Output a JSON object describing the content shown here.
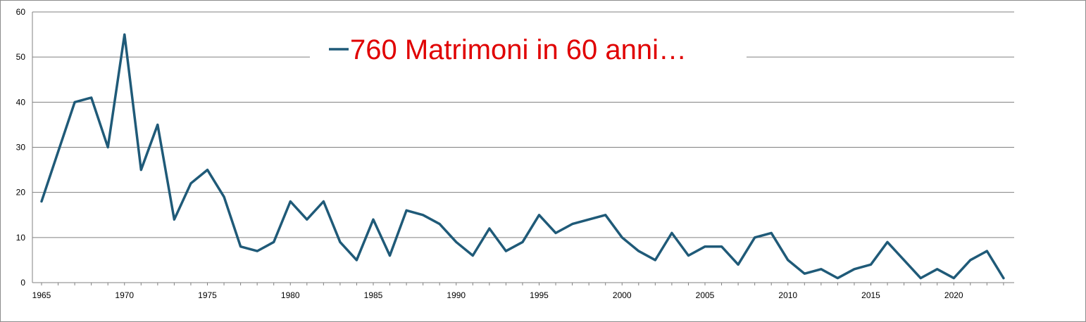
{
  "chart_data": {
    "type": "line",
    "title": "",
    "xlabel": "",
    "ylabel": "",
    "ylim": [
      0,
      60
    ],
    "y_ticks": [
      "0",
      "10",
      "20",
      "30",
      "40",
      "50",
      "60"
    ],
    "x_ticks": [
      "1965",
      "1970",
      "1975",
      "1980",
      "1985",
      "1990",
      "1995",
      "2000",
      "2005",
      "2010",
      "2015",
      "2020"
    ],
    "grid": "horizontal",
    "legend_position": "top-center",
    "series": [
      {
        "name": "760 Matrimoni in 60 anni…",
        "color": "#1f5a78",
        "legend_text_color": "#e00000",
        "x": [
          1965,
          1966,
          1967,
          1968,
          1969,
          1970,
          1971,
          1972,
          1973,
          1974,
          1975,
          1976,
          1977,
          1978,
          1979,
          1980,
          1981,
          1982,
          1983,
          1984,
          1985,
          1986,
          1987,
          1988,
          1989,
          1990,
          1991,
          1992,
          1993,
          1994,
          1995,
          1996,
          1997,
          1998,
          1999,
          2000,
          2001,
          2002,
          2003,
          2004,
          2005,
          2006,
          2007,
          2008,
          2009,
          2010,
          2011,
          2012,
          2013,
          2014,
          2015,
          2016,
          2017,
          2018,
          2019,
          2020,
          2021,
          2022,
          2023
        ],
        "values": [
          18,
          29,
          40,
          41,
          30,
          55,
          25,
          35,
          14,
          22,
          25,
          19,
          8,
          7,
          9,
          18,
          14,
          18,
          9,
          5,
          14,
          6,
          16,
          15,
          13,
          9,
          6,
          12,
          7,
          9,
          15,
          11,
          13,
          14,
          15,
          10,
          7,
          5,
          11,
          6,
          8,
          8,
          4,
          10,
          11,
          5,
          2,
          3,
          1,
          3,
          4,
          9,
          5,
          1,
          3,
          1,
          5,
          7,
          1
        ]
      }
    ]
  }
}
